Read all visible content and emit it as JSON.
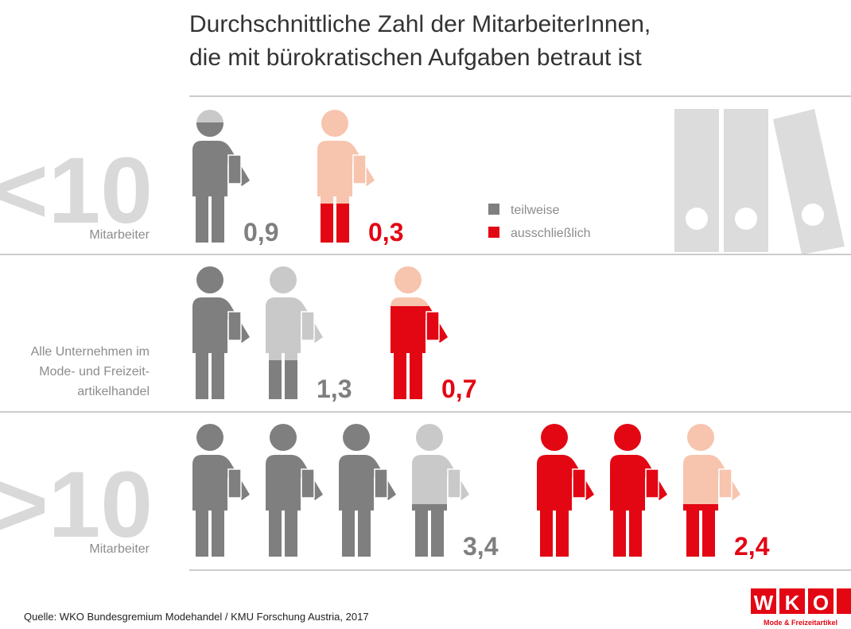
{
  "chart_data": {
    "type": "pictogram",
    "title": [
      "Durchschnittliche Zahl der MitarbeiterInnen,",
      "die mit bürokratischen Aufgaben betraut ist"
    ],
    "categories": [
      [
        "<10",
        "Mitarbeiter"
      ],
      [
        "Alle Unternehmen im",
        "Mode- und Freizeit-",
        "artikelhandel"
      ],
      [
        ">10",
        "Mitarbeiter"
      ]
    ],
    "series": [
      {
        "name": "teilweise",
        "color": "#7f7f7f",
        "light": "#c9c9c9",
        "values": [
          0.9,
          1.3,
          3.4
        ],
        "value_labels": [
          "0,9",
          "1,3",
          "3,4"
        ]
      },
      {
        "name": "ausschließlich",
        "color": "#e30613",
        "light": "#f7c4ae",
        "values": [
          0.3,
          0.7,
          2.4
        ],
        "value_labels": [
          "0,3",
          "0,7",
          "2,4"
        ]
      }
    ],
    "source": "Quelle: WKO Bundesgremium Modehandel / KMU Forschung Austria, 2017",
    "logo_letters": [
      "W",
      "K",
      "O"
    ],
    "logo_tagline": "Mode & Freizeitartikel"
  }
}
